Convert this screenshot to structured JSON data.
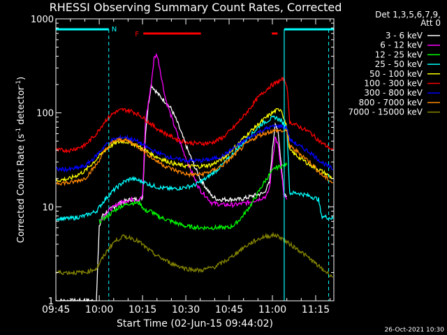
{
  "chart_data": {
    "type": "line",
    "title": "RHESSI Observing Summary Count Rates, Corrected",
    "xlabel": "Start Time (02-Jun-15 09:44:02)",
    "ylabel_main": "Corrected Count Rate (s",
    "ylabel_sup1": "-1",
    "ylabel_mid": " detector",
    "ylabel_sup2": "-1",
    "ylabel_end": ")",
    "yscale": "log",
    "ylim": [
      1,
      1000
    ],
    "xlim_minutes": [
      -0.03,
      96.3
    ],
    "x_ticks": [
      {
        "m": 0,
        "label": "09:45"
      },
      {
        "m": 15,
        "label": "10:00"
      },
      {
        "m": 30,
        "label": "10:15"
      },
      {
        "m": 45,
        "label": "10:30"
      },
      {
        "m": 60,
        "label": "10:45"
      },
      {
        "m": 75,
        "label": "11:00"
      },
      {
        "m": 90,
        "label": "11:15"
      }
    ],
    "y_ticks": [
      {
        "v": 1,
        "label": "1"
      },
      {
        "v": 10,
        "label": "10"
      },
      {
        "v": 100,
        "label": "100"
      },
      {
        "v": 1000,
        "label": "1000"
      }
    ],
    "legend_header_1": "Det 1,3,5,6,7,9,",
    "legend_header_2": "Att 0",
    "annotations": {
      "night_label": "N",
      "flare_label": "F"
    },
    "night_intervals": [
      [
        -0.03,
        18.3
      ],
      [
        79.1,
        96.3
      ]
    ],
    "saa_lines_minutes": [
      18.3,
      94.5
    ],
    "night_end_lines_minutes": [
      79.1
    ],
    "flare_bars": [
      [
        30.3,
        50.2
      ],
      [
        74.8,
        76.8
      ]
    ],
    "footer_date": "26-Oct-2021 10:30",
    "series": [
      {
        "name": "3 - 6 keV",
        "color": "#ffffff",
        "points": [
          [
            0,
            1
          ],
          [
            14,
            1
          ],
          [
            15,
            6
          ],
          [
            16,
            8
          ],
          [
            18,
            9
          ],
          [
            22,
            11
          ],
          [
            26,
            12
          ],
          [
            29,
            12
          ],
          [
            30,
            12.5
          ],
          [
            31,
            60
          ],
          [
            32,
            120
          ],
          [
            33,
            200
          ],
          [
            34,
            180
          ],
          [
            36,
            150
          ],
          [
            38,
            130
          ],
          [
            40,
            110
          ],
          [
            42,
            80
          ],
          [
            44,
            55
          ],
          [
            46,
            38
          ],
          [
            48,
            27
          ],
          [
            50,
            20
          ],
          [
            52,
            16
          ],
          [
            54,
            13
          ],
          [
            56,
            12
          ],
          [
            60,
            12
          ],
          [
            64,
            12
          ],
          [
            68,
            13
          ],
          [
            72,
            14
          ],
          [
            74,
            18
          ],
          [
            75,
            40
          ],
          [
            76,
            80
          ],
          [
            77,
            60
          ],
          [
            78,
            30
          ],
          [
            79,
            14
          ],
          [
            80,
            13
          ]
        ]
      },
      {
        "name": "6 - 12 keV",
        "color": "#ff00ff",
        "points": [
          [
            15,
            7
          ],
          [
            18,
            9
          ],
          [
            22,
            11
          ],
          [
            26,
            12
          ],
          [
            29,
            12
          ],
          [
            30,
            13
          ],
          [
            31,
            80
          ],
          [
            33,
            200
          ],
          [
            34,
            380
          ],
          [
            35,
            420
          ],
          [
            36,
            300
          ],
          [
            37,
            200
          ],
          [
            38,
            140
          ],
          [
            40,
            90
          ],
          [
            42,
            60
          ],
          [
            44,
            40
          ],
          [
            46,
            28
          ],
          [
            48,
            20
          ],
          [
            50,
            15
          ],
          [
            52,
            13
          ],
          [
            54,
            11
          ],
          [
            58,
            10.5
          ],
          [
            62,
            10.5
          ],
          [
            66,
            11
          ],
          [
            70,
            12
          ],
          [
            73,
            13
          ],
          [
            74,
            16
          ],
          [
            75,
            30
          ],
          [
            76,
            55
          ],
          [
            77,
            45
          ],
          [
            78,
            25
          ],
          [
            79,
            13
          ],
          [
            80,
            12
          ]
        ]
      },
      {
        "name": "12 - 25 keV",
        "color": "#00ff00",
        "points": [
          [
            15,
            7
          ],
          [
            18,
            8
          ],
          [
            22,
            10
          ],
          [
            26,
            11
          ],
          [
            29,
            11
          ],
          [
            30,
            10
          ],
          [
            31,
            9
          ],
          [
            33,
            9
          ],
          [
            35,
            8
          ],
          [
            40,
            7
          ],
          [
            45,
            6.2
          ],
          [
            50,
            6
          ],
          [
            55,
            6
          ],
          [
            60,
            6
          ],
          [
            62,
            6.5
          ],
          [
            64,
            7.5
          ],
          [
            66,
            9
          ],
          [
            68,
            11
          ],
          [
            70,
            14
          ],
          [
            72,
            18
          ],
          [
            74,
            22
          ],
          [
            76,
            26
          ],
          [
            78,
            27
          ],
          [
            80,
            28
          ]
        ]
      },
      {
        "name": "25 - 50 keV",
        "color": "#00ffff",
        "points": [
          [
            0,
            7.5
          ],
          [
            5,
            7.5
          ],
          [
            10,
            8
          ],
          [
            14,
            9
          ],
          [
            17,
            12
          ],
          [
            20,
            15
          ],
          [
            23,
            18
          ],
          [
            26,
            20
          ],
          [
            29,
            19
          ],
          [
            31,
            18
          ],
          [
            33,
            17
          ],
          [
            36,
            16
          ],
          [
            40,
            15.5
          ],
          [
            44,
            16
          ],
          [
            48,
            17
          ],
          [
            52,
            20
          ],
          [
            56,
            25
          ],
          [
            60,
            33
          ],
          [
            64,
            45
          ],
          [
            68,
            60
          ],
          [
            71,
            75
          ],
          [
            74,
            85
          ],
          [
            76,
            90
          ],
          [
            78,
            82
          ],
          [
            80,
            70
          ],
          [
            81,
            14
          ],
          [
            84,
            14
          ],
          [
            88,
            13
          ],
          [
            91,
            12
          ],
          [
            92,
            8
          ],
          [
            96,
            7.5
          ]
        ]
      },
      {
        "name": "50 - 100 keV",
        "color": "#ffff00",
        "points": [
          [
            0,
            19
          ],
          [
            5,
            20
          ],
          [
            10,
            24
          ],
          [
            14,
            32
          ],
          [
            17,
            40
          ],
          [
            20,
            47
          ],
          [
            23,
            50
          ],
          [
            25,
            49
          ],
          [
            28,
            45
          ],
          [
            31,
            40
          ],
          [
            34,
            35
          ],
          [
            38,
            31
          ],
          [
            42,
            28
          ],
          [
            46,
            27
          ],
          [
            50,
            27
          ],
          [
            54,
            28
          ],
          [
            58,
            33
          ],
          [
            62,
            43
          ],
          [
            66,
            58
          ],
          [
            70,
            75
          ],
          [
            73,
            90
          ],
          [
            76,
            105
          ],
          [
            78,
            110
          ],
          [
            80,
            70
          ],
          [
            81,
            40
          ],
          [
            84,
            34
          ],
          [
            88,
            28
          ],
          [
            92,
            24
          ],
          [
            96,
            20
          ]
        ]
      },
      {
        "name": "100 - 300 keV",
        "color": "#ff0000",
        "points": [
          [
            0,
            40
          ],
          [
            5,
            40
          ],
          [
            10,
            45
          ],
          [
            14,
            60
          ],
          [
            17,
            82
          ],
          [
            20,
            100
          ],
          [
            23,
            108
          ],
          [
            26,
            105
          ],
          [
            29,
            95
          ],
          [
            32,
            80
          ],
          [
            35,
            68
          ],
          [
            38,
            60
          ],
          [
            42,
            52
          ],
          [
            46,
            48
          ],
          [
            50,
            47
          ],
          [
            54,
            48
          ],
          [
            58,
            55
          ],
          [
            62,
            72
          ],
          [
            66,
            100
          ],
          [
            70,
            145
          ],
          [
            74,
            190
          ],
          [
            77,
            215
          ],
          [
            79,
            230
          ],
          [
            80,
            200
          ],
          [
            81,
            80
          ],
          [
            84,
            72
          ],
          [
            88,
            62
          ],
          [
            92,
            48
          ],
          [
            96,
            40
          ]
        ]
      },
      {
        "name": "300 - 800 keV",
        "color": "#0000ff",
        "points": [
          [
            0,
            25
          ],
          [
            5,
            25
          ],
          [
            10,
            27
          ],
          [
            14,
            35
          ],
          [
            17,
            45
          ],
          [
            20,
            52
          ],
          [
            23,
            55
          ],
          [
            25,
            54
          ],
          [
            28,
            50
          ],
          [
            31,
            44
          ],
          [
            34,
            39
          ],
          [
            38,
            35
          ],
          [
            42,
            32
          ],
          [
            46,
            31
          ],
          [
            50,
            31
          ],
          [
            54,
            32
          ],
          [
            58,
            35
          ],
          [
            62,
            43
          ],
          [
            66,
            52
          ],
          [
            70,
            62
          ],
          [
            74,
            70
          ],
          [
            77,
            73
          ],
          [
            80,
            70
          ],
          [
            81,
            52
          ],
          [
            84,
            45
          ],
          [
            88,
            38
          ],
          [
            92,
            30
          ],
          [
            96,
            25
          ]
        ]
      },
      {
        "name": "800 - 7000 keV",
        "color": "#ff8800",
        "points": [
          [
            0,
            18
          ],
          [
            5,
            18
          ],
          [
            10,
            20
          ],
          [
            14,
            28
          ],
          [
            17,
            40
          ],
          [
            20,
            50
          ],
          [
            23,
            52
          ],
          [
            25,
            50
          ],
          [
            28,
            45
          ],
          [
            31,
            38
          ],
          [
            34,
            32
          ],
          [
            38,
            27
          ],
          [
            42,
            24
          ],
          [
            46,
            22
          ],
          [
            50,
            22
          ],
          [
            54,
            24
          ],
          [
            58,
            28
          ],
          [
            62,
            36
          ],
          [
            66,
            47
          ],
          [
            70,
            57
          ],
          [
            74,
            63
          ],
          [
            77,
            65
          ],
          [
            80,
            63
          ],
          [
            81,
            44
          ],
          [
            84,
            38
          ],
          [
            88,
            30
          ],
          [
            92,
            22
          ],
          [
            96,
            18
          ]
        ]
      },
      {
        "name": "7000 - 15000 keV",
        "color": "#888800",
        "points": [
          [
            0,
            2
          ],
          [
            5,
            2
          ],
          [
            10,
            2
          ],
          [
            14,
            2.2
          ],
          [
            16,
            2.8
          ],
          [
            18,
            3.5
          ],
          [
            20,
            4.2
          ],
          [
            23,
            4.8
          ],
          [
            26,
            4.7
          ],
          [
            29,
            4.2
          ],
          [
            32,
            3.5
          ],
          [
            35,
            3
          ],
          [
            40,
            2.5
          ],
          [
            45,
            2.2
          ],
          [
            50,
            2.1
          ],
          [
            55,
            2.3
          ],
          [
            60,
            2.8
          ],
          [
            64,
            3.5
          ],
          [
            68,
            4.2
          ],
          [
            72,
            4.8
          ],
          [
            76,
            5
          ],
          [
            78,
            4.7
          ],
          [
            80,
            4.2
          ],
          [
            84,
            3.5
          ],
          [
            88,
            2.8
          ],
          [
            92,
            2.2
          ],
          [
            96,
            1.8
          ]
        ]
      }
    ]
  }
}
